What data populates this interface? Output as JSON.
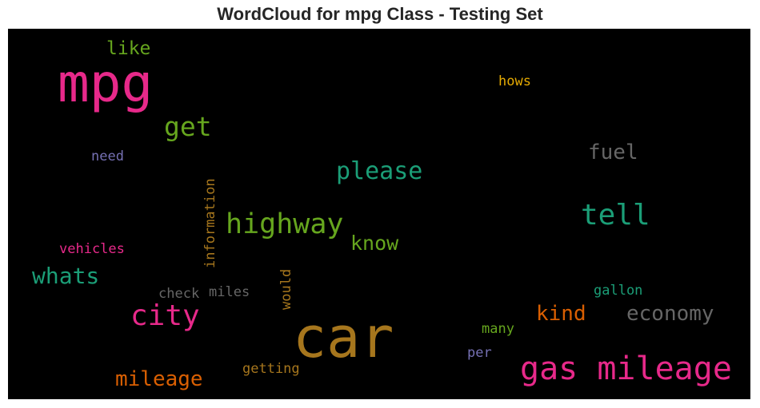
{
  "title": "WordCloud for mpg Class - Testing Set",
  "words": {
    "mpg": {
      "text": "mpg",
      "color": "#e7298a"
    },
    "like": {
      "text": "like",
      "color": "#66a61e"
    },
    "hows": {
      "text": "hows",
      "color": "#e6ab02"
    },
    "get": {
      "text": "get",
      "color": "#66a61e"
    },
    "fuel": {
      "text": "fuel",
      "color": "#666666"
    },
    "need": {
      "text": "need",
      "color": "#7570b3"
    },
    "please": {
      "text": "please",
      "color": "#1b9e77"
    },
    "information": {
      "text": "information",
      "color": "#a6761d"
    },
    "tell": {
      "text": "tell",
      "color": "#1b9e77"
    },
    "highway": {
      "text": "highway",
      "color": "#66a61e"
    },
    "know": {
      "text": "know",
      "color": "#66a61e"
    },
    "vehicles": {
      "text": "vehicles",
      "color": "#e7298a"
    },
    "whats": {
      "text": "whats",
      "color": "#1b9e77"
    },
    "would": {
      "text": "would",
      "color": "#a6761d"
    },
    "check": {
      "text": "check",
      "color": "#666666"
    },
    "miles": {
      "text": "miles",
      "color": "#666666"
    },
    "gallon": {
      "text": "gallon",
      "color": "#1b9e77"
    },
    "city": {
      "text": "city",
      "color": "#e7298a"
    },
    "kind": {
      "text": "kind",
      "color": "#d95f02"
    },
    "economy": {
      "text": "economy",
      "color": "#666666"
    },
    "car": {
      "text": "car",
      "color": "#a6761d"
    },
    "many": {
      "text": "many",
      "color": "#66a61e"
    },
    "per": {
      "text": "per",
      "color": "#7570b3"
    },
    "gas_mileage": {
      "text": "gas mileage",
      "color": "#e7298a"
    },
    "getting": {
      "text": "getting",
      "color": "#a6761d"
    },
    "mileage": {
      "text": "mileage",
      "color": "#d95f02"
    }
  }
}
